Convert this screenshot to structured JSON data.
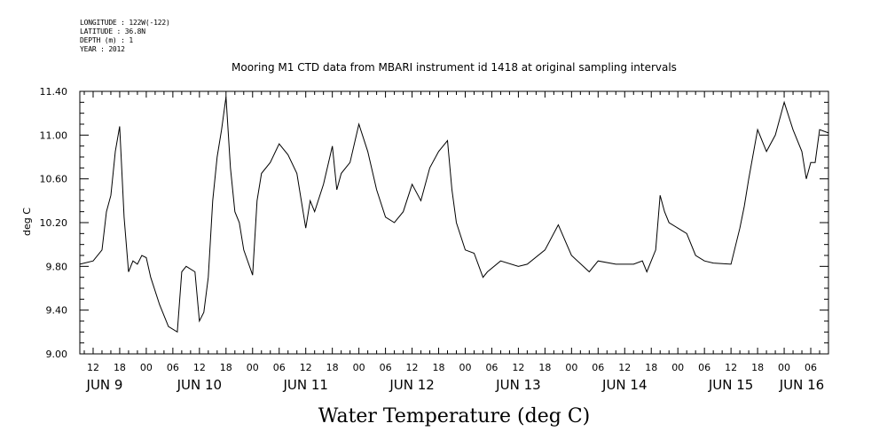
{
  "header": {
    "longitude": "LONGITUDE : 122W(-122)",
    "latitude": "LATITUDE : 36.8N",
    "depth": "DEPTH (m) : 1",
    "year": "YEAR : 2012"
  },
  "chart_data": {
    "type": "line",
    "title": "Mooring M1 CTD data from MBARI instrument id 1418 at original sampling intervals",
    "xlabel": "Water Temperature (deg C)",
    "ylabel": "deg C",
    "ylim": [
      9.0,
      11.4
    ],
    "xlim": [
      "2012-06-09T09:00",
      "2012-06-16T10:00"
    ],
    "yticks": [
      "9.00",
      "9.40",
      "9.80",
      "10.20",
      "10.60",
      "11.00",
      "11.40"
    ],
    "hour_ticks": [
      "12",
      "18",
      "00",
      "06",
      "12",
      "18",
      "00",
      "06",
      "12",
      "18",
      "00",
      "06",
      "12",
      "18",
      "00",
      "06",
      "12",
      "18",
      "00",
      "06",
      "12",
      "18",
      "00",
      "06",
      "12",
      "18",
      "00",
      "06"
    ],
    "day_labels": [
      "JUN  9",
      "JUN 10",
      "JUN 11",
      "JUN 12",
      "JUN 13",
      "JUN 14",
      "JUN 15",
      "JUN 16"
    ],
    "grid": false,
    "series": [
      {
        "x": [
          "2012-06-09T09:00",
          "2012-06-09T12:00",
          "2012-06-09T14:00",
          "2012-06-09T15:00",
          "2012-06-09T16:00",
          "2012-06-09T17:00",
          "2012-06-09T18:00",
          "2012-06-09T19:00",
          "2012-06-09T20:00",
          "2012-06-09T21:00",
          "2012-06-09T22:00",
          "2012-06-09T23:00",
          "2012-06-10T00:00",
          "2012-06-10T01:00",
          "2012-06-10T03:00",
          "2012-06-10T05:00",
          "2012-06-10T07:00",
          "2012-06-10T08:00",
          "2012-06-10T09:00",
          "2012-06-10T11:00",
          "2012-06-10T12:00",
          "2012-06-10T13:00",
          "2012-06-10T14:00",
          "2012-06-10T15:00",
          "2012-06-10T16:00",
          "2012-06-10T17:00",
          "2012-06-10T18:00",
          "2012-06-10T19:00",
          "2012-06-10T20:00",
          "2012-06-10T21:00",
          "2012-06-10T22:00",
          "2012-06-11T00:00",
          "2012-06-11T01:00",
          "2012-06-11T02:00",
          "2012-06-11T04:00",
          "2012-06-11T06:00",
          "2012-06-11T08:00",
          "2012-06-11T10:00",
          "2012-06-11T12:00",
          "2012-06-11T13:00",
          "2012-06-11T14:00",
          "2012-06-11T16:00",
          "2012-06-11T18:00",
          "2012-06-11T19:00",
          "2012-06-11T20:00",
          "2012-06-11T22:00",
          "2012-06-12T00:00",
          "2012-06-12T02:00",
          "2012-06-12T04:00",
          "2012-06-12T06:00",
          "2012-06-12T08:00",
          "2012-06-12T10:00",
          "2012-06-12T12:00",
          "2012-06-12T14:00",
          "2012-06-12T16:00",
          "2012-06-12T18:00",
          "2012-06-12T20:00",
          "2012-06-12T21:00",
          "2012-06-12T22:00",
          "2012-06-13T00:00",
          "2012-06-13T02:00",
          "2012-06-13T04:00",
          "2012-06-13T05:00",
          "2012-06-13T08:00",
          "2012-06-13T12:00",
          "2012-06-13T14:00",
          "2012-06-13T18:00",
          "2012-06-13T21:00",
          "2012-06-14T00:00",
          "2012-06-14T04:00",
          "2012-06-14T06:00",
          "2012-06-14T10:00",
          "2012-06-14T14:00",
          "2012-06-14T16:00",
          "2012-06-14T17:00",
          "2012-06-14T19:00",
          "2012-06-14T20:00",
          "2012-06-14T21:00",
          "2012-06-14T22:00",
          "2012-06-15T00:00",
          "2012-06-15T02:00",
          "2012-06-15T04:00",
          "2012-06-15T06:00",
          "2012-06-15T08:00",
          "2012-06-15T12:00",
          "2012-06-15T14:00",
          "2012-06-15T15:00",
          "2012-06-15T16:00",
          "2012-06-15T18:00",
          "2012-06-15T20:00",
          "2012-06-15T22:00",
          "2012-06-16T00:00",
          "2012-06-16T02:00",
          "2012-06-16T04:00",
          "2012-06-16T05:00",
          "2012-06-16T06:00",
          "2012-06-16T07:00",
          "2012-06-16T08:00",
          "2012-06-16T10:00"
        ],
        "values": [
          9.82,
          9.85,
          9.95,
          10.3,
          10.45,
          10.85,
          11.08,
          10.25,
          9.75,
          9.85,
          9.82,
          9.9,
          9.88,
          9.7,
          9.45,
          9.25,
          9.2,
          9.75,
          9.8,
          9.75,
          9.3,
          9.38,
          9.7,
          10.4,
          10.8,
          11.05,
          11.35,
          10.7,
          10.3,
          10.2,
          9.95,
          9.72,
          10.4,
          10.65,
          10.75,
          10.92,
          10.82,
          10.65,
          10.15,
          10.4,
          10.3,
          10.55,
          10.9,
          10.5,
          10.65,
          10.75,
          11.1,
          10.85,
          10.5,
          10.25,
          10.2,
          10.3,
          10.55,
          10.4,
          10.7,
          10.85,
          10.95,
          10.5,
          10.2,
          9.95,
          9.92,
          9.7,
          9.75,
          9.85,
          9.8,
          9.82,
          9.95,
          10.18,
          9.9,
          9.75,
          9.85,
          9.82,
          9.82,
          9.85,
          9.75,
          9.95,
          10.45,
          10.3,
          10.2,
          10.15,
          10.1,
          9.9,
          9.85,
          9.83,
          9.82,
          10.15,
          10.35,
          10.6,
          11.05,
          10.85,
          11.0,
          11.3,
          11.05,
          10.85,
          10.6,
          10.75,
          10.75,
          11.05,
          11.02
        ]
      }
    ]
  }
}
